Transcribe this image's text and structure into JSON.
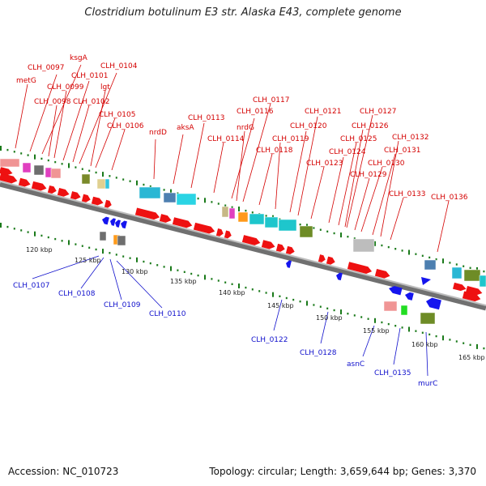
{
  "title": "Clostridium botulinum E3 str. Alaska E43, complete genome",
  "footer": {
    "accession": "Accession: NC_010723",
    "summary": "Topology: circular; Length: 3,659,644 bp; Genes: 3,370"
  },
  "colors": {
    "forward_gene": "#ee1111",
    "reverse_gene": "#1515ee",
    "forward_label": "#d40000",
    "reverse_label": "#1010cc",
    "backbone": "#8a8a8a",
    "ticks": "#1a7a1a"
  },
  "scale_labels": [
    "120 kbp",
    "125 kbp",
    "130 kbp",
    "135 kbp",
    "140 kbp",
    "145 kbp",
    "150 kbp",
    "155 kbp",
    "160 kbp",
    "165 kbp"
  ],
  "forward_labels": [
    "metG",
    "CLH_0097",
    "ksgA",
    "CLH_0098",
    "CLH_0099",
    "CLH_0101",
    "CLH_0102",
    "CLH_0104",
    "lgt",
    "CLH_0105",
    "CLH_0106",
    "nrdD",
    "aksA",
    "CLH_0113",
    "CLH_0114",
    "CLH_0116",
    "nrdG",
    "CLH_0117",
    "CLH_0118",
    "CLH_0119",
    "CLH_0120",
    "CLH_0121",
    "CLH_0123",
    "CLH_0124",
    "CLH_0125",
    "CLH_0126",
    "CLH_0127",
    "CLH_0129",
    "CLH_0130",
    "CLH_0131",
    "CLH_0132",
    "CLH_0133",
    "CLH_0136"
  ],
  "reverse_labels": [
    "CLH_0107",
    "CLH_0108",
    "CLH_0109",
    "CLH_0110",
    "CLH_0122",
    "CLH_0128",
    "asnC",
    "CLH_0135",
    "murC"
  ]
}
